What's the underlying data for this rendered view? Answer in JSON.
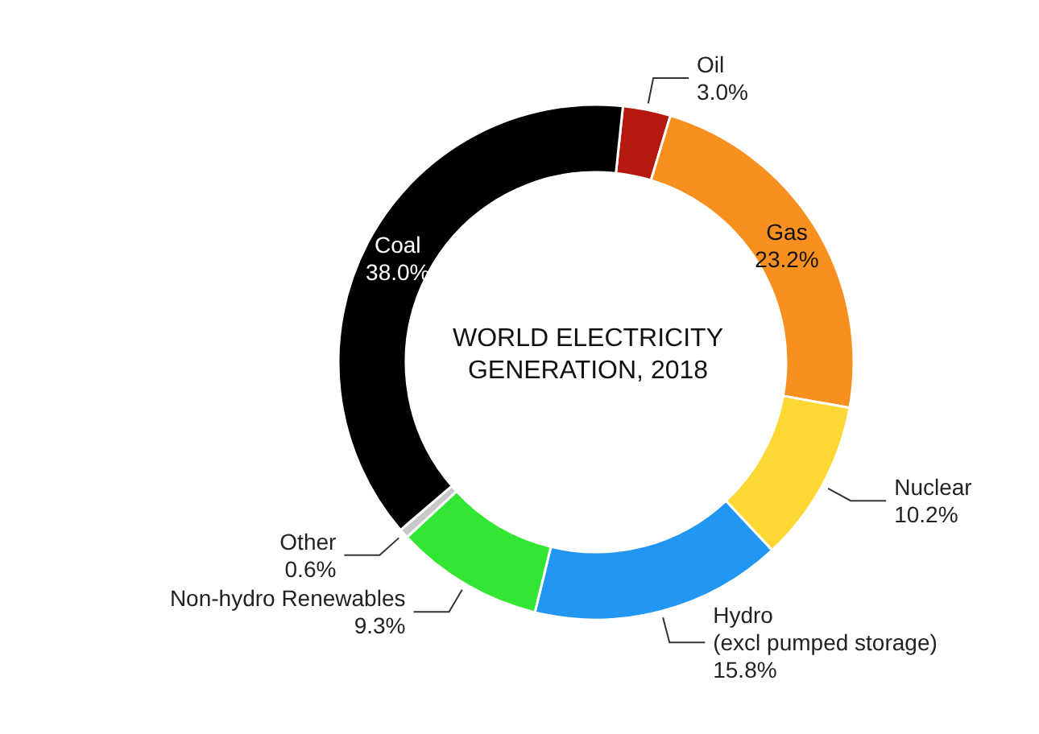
{
  "chart_data": {
    "type": "donut",
    "title": "WORLD ELECTRICITY GENERATION, 2018",
    "categories": [
      "Oil",
      "Gas",
      "Nuclear",
      "Hydro (excl pumped storage)",
      "Non-hydro Renewables",
      "Other",
      "Coal"
    ],
    "values": [
      3.0,
      23.2,
      10.2,
      15.8,
      9.3,
      0.6,
      38.0
    ],
    "value_labels": [
      "3.0%",
      "23.2%",
      "10.2%",
      "15.8%",
      "9.3%",
      "0.6%",
      "38.0%"
    ],
    "colors": [
      "#b5180f",
      "#f7901e",
      "#fdd835",
      "#2196f3",
      "#33e633",
      "#c8c8c8",
      "#000000"
    ]
  }
}
